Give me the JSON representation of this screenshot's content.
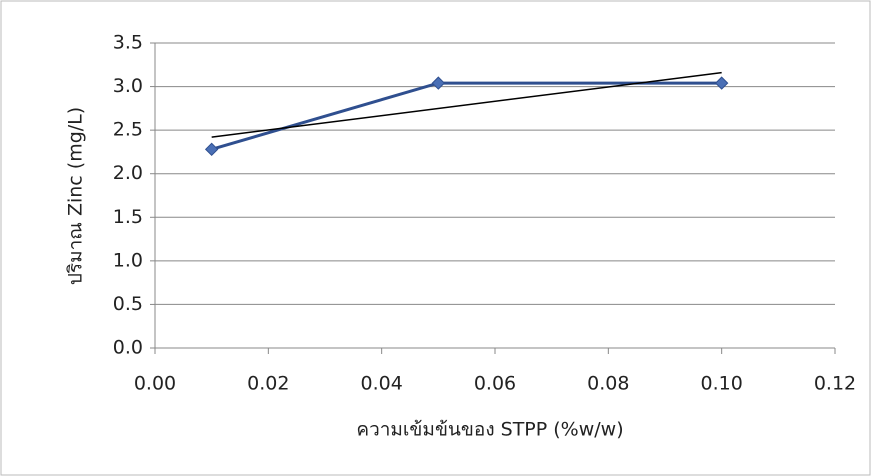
{
  "chart_data": {
    "type": "line",
    "xlabel": "ความเข้มข้นของ STPP (%w/w)",
    "ylabel": "ปริมาณ Zinc (mg/L)",
    "xlim": [
      0,
      0.12
    ],
    "xticks": [
      {
        "value": 0,
        "label": "0.00"
      },
      0.02,
      0.04,
      0.06,
      0.08,
      {
        "value": 0.1,
        "label": "0.10"
      },
      0.12
    ],
    "ylim": [
      0,
      3.5
    ],
    "yticks": [
      {
        "value": 0,
        "label": "0.0"
      },
      0.5,
      {
        "value": 1,
        "label": "1.0"
      },
      1.5,
      {
        "value": 2,
        "label": "2.0"
      },
      2.5,
      {
        "value": 3,
        "label": "3.0"
      },
      3.5
    ],
    "grid": true,
    "series": [
      {
        "color": "#2f4f8f",
        "marker": "diamond",
        "x": [
          0.01,
          0.05,
          0.1
        ],
        "values": [
          2.28,
          3.04,
          3.04
        ]
      },
      {
        "color": "#000000",
        "x": [
          0.01,
          0.1
        ],
        "values": [
          2.42,
          3.16
        ]
      }
    ]
  }
}
